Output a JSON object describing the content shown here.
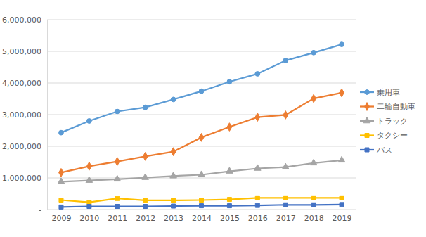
{
  "chart_data": {
    "type": "line",
    "categories": [
      "2009",
      "2010",
      "2011",
      "2012",
      "2013",
      "2014",
      "2015",
      "2016",
      "2017",
      "2018",
      "2019"
    ],
    "series": [
      {
        "name": "乗用車",
        "color": "#5b9bd5",
        "marker": "circle",
        "values": [
          2430000,
          2800000,
          3100000,
          3230000,
          3480000,
          3740000,
          4040000,
          4290000,
          4710000,
          4960000,
          5220000
        ]
      },
      {
        "name": "二輪自動車",
        "color": "#ed7d31",
        "marker": "diamond",
        "values": [
          1170000,
          1370000,
          1520000,
          1680000,
          1830000,
          2280000,
          2610000,
          2920000,
          2990000,
          3510000,
          3690000
        ]
      },
      {
        "name": "トラック",
        "color": "#a5a5a5",
        "marker": "triangle",
        "values": [
          880000,
          920000,
          960000,
          1010000,
          1060000,
          1100000,
          1210000,
          1300000,
          1340000,
          1470000,
          1560000
        ]
      },
      {
        "name": "タクシー",
        "color": "#ffc000",
        "marker": "square",
        "values": [
          300000,
          230000,
          350000,
          290000,
          290000,
          300000,
          320000,
          370000,
          370000,
          370000,
          370000
        ]
      },
      {
        "name": "バス",
        "color": "#4472c4",
        "marker": "square",
        "values": [
          80000,
          100000,
          100000,
          100000,
          110000,
          120000,
          120000,
          130000,
          150000,
          150000,
          160000
        ]
      }
    ],
    "ylim": [
      0,
      6000000
    ],
    "yticks": [
      {
        "value": 0,
        "label": "-"
      },
      {
        "value": 1000000,
        "label": "1,000,000"
      },
      {
        "value": 2000000,
        "label": "2,000,000"
      },
      {
        "value": 3000000,
        "label": "3,000,000"
      },
      {
        "value": 4000000,
        "label": "4,000,000"
      },
      {
        "value": 5000000,
        "label": "5,000,000"
      },
      {
        "value": 6000000,
        "label": "6,000,000"
      }
    ],
    "grid": true,
    "legend": "right"
  }
}
